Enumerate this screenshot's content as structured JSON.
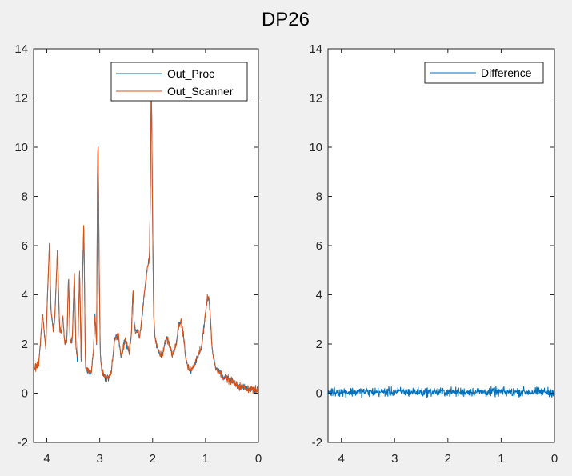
{
  "figure": {
    "title": "DP26"
  },
  "colors": {
    "proc": "#0072bd",
    "scanner": "#d95319",
    "diff": "#0072bd",
    "axis": "#262626",
    "background": "#f0f0f0"
  },
  "chart_data": [
    {
      "type": "line",
      "title": "DP26",
      "xlabel": "",
      "ylabel": "",
      "xlim": [
        4.25,
        0
      ],
      "x_reversed": true,
      "ylim": [
        -2,
        14
      ],
      "xticks": [
        4,
        3,
        2,
        1,
        0
      ],
      "yticks": [
        -2,
        0,
        2,
        4,
        6,
        8,
        10,
        12,
        14
      ],
      "grid": false,
      "legend_position": "top-right",
      "legend": [
        "Out_Proc",
        "Out_Scanner"
      ],
      "series": [
        {
          "name": "Out_Proc",
          "noise": 0.12
        },
        {
          "name": "Out_Scanner",
          "noise": 0.12
        }
      ],
      "profile": {
        "x": [
          4.25,
          4.15,
          4.08,
          4.02,
          3.98,
          3.95,
          3.92,
          3.88,
          3.85,
          3.8,
          3.76,
          3.73,
          3.7,
          3.66,
          3.62,
          3.59,
          3.56,
          3.52,
          3.48,
          3.45,
          3.42,
          3.38,
          3.35,
          3.32,
          3.3,
          3.27,
          3.22,
          3.16,
          3.12,
          3.09,
          3.06,
          3.04,
          3.03,
          3.01,
          2.99,
          2.96,
          2.92,
          2.88,
          2.84,
          2.78,
          2.72,
          2.65,
          2.6,
          2.56,
          2.52,
          2.48,
          2.44,
          2.4,
          2.37,
          2.35,
          2.32,
          2.28,
          2.25,
          2.2,
          2.15,
          2.1,
          2.06,
          2.04,
          2.03,
          2.02,
          2.0,
          1.98,
          1.95,
          1.9,
          1.86,
          1.82,
          1.78,
          1.74,
          1.7,
          1.66,
          1.62,
          1.58,
          1.54,
          1.5,
          1.46,
          1.42,
          1.38,
          1.34,
          1.3,
          1.25,
          1.2,
          1.15,
          1.08,
          1.02,
          0.97,
          0.94,
          0.92,
          0.9,
          0.88,
          0.85,
          0.8,
          0.74,
          0.68,
          0.6,
          0.5,
          0.4,
          0.3,
          0.2,
          0.1,
          0.0
        ],
        "y": [
          0.9,
          1.3,
          3.2,
          1.8,
          4.5,
          6.1,
          3.3,
          2.6,
          3.0,
          5.8,
          2.7,
          2.4,
          3.2,
          2.0,
          2.2,
          4.8,
          2.0,
          2.2,
          4.9,
          1.9,
          1.3,
          5.0,
          1.2,
          5.2,
          6.9,
          1.1,
          0.9,
          0.8,
          1.7,
          3.2,
          2.0,
          9.6,
          10.1,
          5.0,
          1.6,
          0.9,
          0.7,
          0.6,
          0.6,
          0.9,
          2.2,
          2.4,
          1.5,
          1.8,
          2.2,
          1.9,
          1.7,
          2.4,
          4.3,
          2.9,
          2.5,
          2.6,
          2.2,
          3.1,
          4.2,
          5.1,
          5.5,
          8.5,
          11.8,
          12.2,
          7.0,
          3.2,
          2.2,
          1.8,
          1.6,
          1.5,
          1.9,
          2.3,
          2.1,
          1.8,
          1.5,
          1.8,
          2.2,
          2.8,
          2.9,
          2.4,
          1.5,
          1.1,
          0.9,
          1.0,
          1.2,
          1.5,
          1.8,
          2.9,
          3.8,
          3.9,
          3.5,
          2.8,
          2.0,
          1.4,
          1.0,
          0.9,
          0.7,
          0.6,
          0.5,
          0.3,
          0.25,
          0.2,
          0.15,
          0.1
        ]
      }
    },
    {
      "type": "line",
      "title": "",
      "xlabel": "",
      "ylabel": "",
      "xlim": [
        4.25,
        0
      ],
      "x_reversed": true,
      "ylim": [
        -2,
        14
      ],
      "xticks": [
        4,
        3,
        2,
        1,
        0
      ],
      "yticks": [
        -2,
        0,
        2,
        4,
        6,
        8,
        10,
        12,
        14
      ],
      "grid": false,
      "legend_position": "top-right",
      "legend": [
        "Difference"
      ],
      "series": [
        {
          "name": "Difference",
          "baseline": 0.05,
          "noise": 0.12,
          "range": [
            -0.3,
            0.45
          ]
        }
      ]
    }
  ]
}
